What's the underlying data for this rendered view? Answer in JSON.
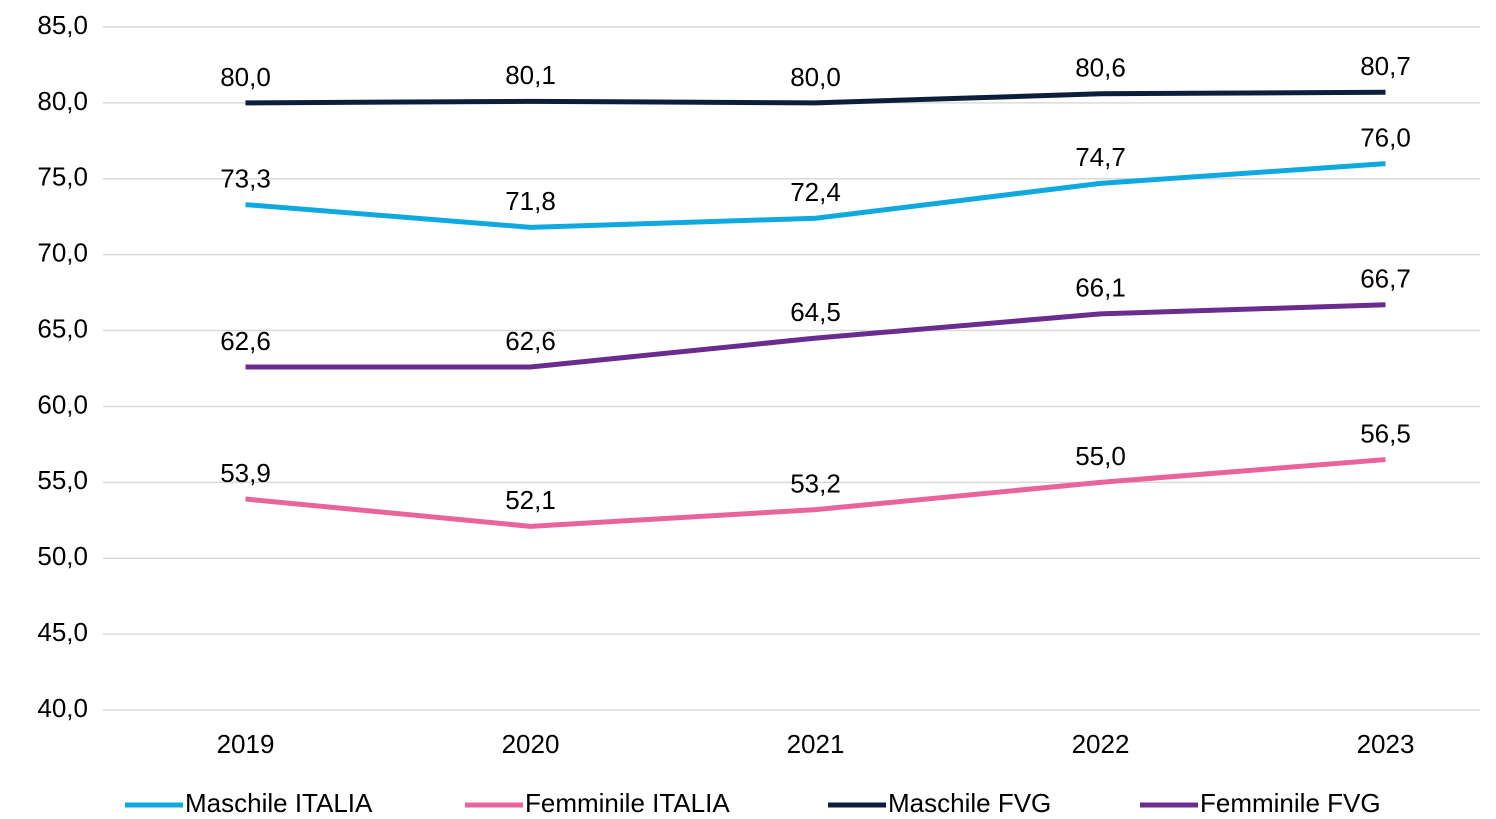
{
  "chart_data": {
    "type": "line",
    "categories": [
      "2019",
      "2020",
      "2021",
      "2022",
      "2023"
    ],
    "series": [
      {
        "name": "Maschile ITALIA",
        "color": "#0fa9e0",
        "values": [
          73.3,
          71.8,
          72.4,
          74.7,
          76.0
        ],
        "value_labels": [
          "73,3",
          "71,8",
          "72,4",
          "74,7",
          "76,0"
        ]
      },
      {
        "name": "Femminile ITALIA",
        "color": "#e8649a",
        "values": [
          53.9,
          52.1,
          53.2,
          55.0,
          56.5
        ],
        "value_labels": [
          "53,9",
          "52,1",
          "53,2",
          "55,0",
          "56,5"
        ]
      },
      {
        "name": "Maschile FVG",
        "color": "#0b1f3d",
        "values": [
          80.0,
          80.1,
          80.0,
          80.6,
          80.7
        ],
        "value_labels": [
          "80,0",
          "80,1",
          "80,0",
          "80,6",
          "80,7"
        ]
      },
      {
        "name": "Femminile FVG",
        "color": "#6a2c8f",
        "values": [
          62.6,
          62.6,
          64.5,
          66.1,
          66.7
        ],
        "value_labels": [
          "62,6",
          "62,6",
          "64,5",
          "66,1",
          "66,7"
        ]
      }
    ],
    "ylim": [
      40,
      85
    ],
    "yticks": [
      {
        "value": 40,
        "label": "40,0"
      },
      {
        "value": 45,
        "label": "45,0"
      },
      {
        "value": 50,
        "label": "50,0"
      },
      {
        "value": 55,
        "label": "55,0"
      },
      {
        "value": 60,
        "label": "60,0"
      },
      {
        "value": 65,
        "label": "65,0"
      },
      {
        "value": 70,
        "label": "70,0"
      },
      {
        "value": 75,
        "label": "75,0"
      },
      {
        "value": 80,
        "label": "80,0"
      },
      {
        "value": 85,
        "label": "85,0"
      }
    ],
    "grid": true,
    "legend": "bottom"
  }
}
